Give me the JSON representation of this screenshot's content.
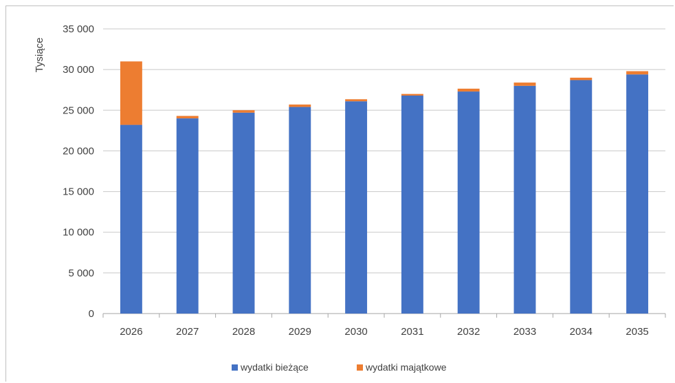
{
  "chart_data": {
    "type": "bar",
    "stacked": true,
    "title": "",
    "xlabel": "",
    "ylabel": "Tysiące",
    "ylim": [
      0,
      35000
    ],
    "yticks": [
      0,
      5000,
      10000,
      15000,
      20000,
      25000,
      30000,
      35000
    ],
    "ytick_labels": [
      "0",
      "5 000",
      "10 000",
      "15 000",
      "20 000",
      "25 000",
      "30 000",
      "35 000"
    ],
    "grid": true,
    "legend": "bottom",
    "categories": [
      "2026",
      "2027",
      "2028",
      "2029",
      "2030",
      "2031",
      "2032",
      "2033",
      "2034",
      "2035"
    ],
    "series": [
      {
        "name": "wydatki bieżące",
        "color": "#4472c4",
        "values": [
          23200,
          24000,
          24700,
          25400,
          26100,
          26800,
          27300,
          28000,
          28700,
          29400
        ]
      },
      {
        "name": "wydatki majątkowe",
        "color": "#ed7d31",
        "values": [
          7800,
          300,
          300,
          300,
          250,
          200,
          350,
          400,
          300,
          400
        ]
      }
    ]
  }
}
